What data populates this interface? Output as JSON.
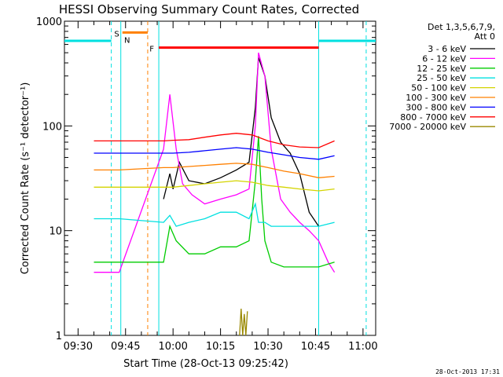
{
  "chart_data": {
    "type": "line",
    "title": "HESSI Observing Summary Count Rates, Corrected",
    "xlabel": "Start Time (28-Oct-13 09:25:42)",
    "ylabel": "Corrected Count Rate (s⁻¹ detector⁻¹)",
    "xlim": [
      "09:25:42",
      "11:04:00"
    ],
    "ylim": [
      1,
      1000
    ],
    "yscale": "log",
    "xticks": [
      "09:30",
      "09:45",
      "10:00",
      "10:15",
      "10:30",
      "10:45",
      "11:00"
    ],
    "yticks": [
      {
        "value": 1,
        "label": "1"
      },
      {
        "value": 10,
        "label": "10"
      },
      {
        "value": 100,
        "label": "100"
      },
      {
        "value": 1000,
        "label": "1000"
      }
    ],
    "legend_header": [
      "Det 1,3,5,6,7,9,",
      "Att 0"
    ],
    "legend_position": "right",
    "flags": [
      {
        "label": "S",
        "color": "#ff8800"
      },
      {
        "label": "N",
        "color": "#00d8d8"
      },
      {
        "label": "F",
        "color": "#ff0000"
      }
    ],
    "event_bars": [
      {
        "name": "night",
        "color": "#00e0e0",
        "start": "09:25:42",
        "end": "09:40:30",
        "level": 650
      },
      {
        "name": "night",
        "color": "#00e0e0",
        "start": "10:46:00",
        "end": "11:04:00",
        "level": 650
      },
      {
        "name": "saa",
        "color": "#ff8000",
        "start": "09:44:00",
        "end": "09:52:00",
        "level": 780
      },
      {
        "name": "flare",
        "color": "#ff0000",
        "start": "09:55:30",
        "end": "10:46:00",
        "level": 560
      }
    ],
    "boundaries": [
      {
        "time": "09:40:30",
        "color": "#00e0e0",
        "dashed": true
      },
      {
        "time": "09:43:30",
        "color": "#00e0e0",
        "dashed": false
      },
      {
        "time": "09:52:00",
        "color": "#ff8000",
        "dashed": true
      },
      {
        "time": "09:55:30",
        "color": "#00e0e0",
        "dashed": false
      },
      {
        "time": "10:46:00",
        "color": "#00e0e0",
        "dashed": false
      },
      {
        "time": "11:01:00",
        "color": "#00e0e0",
        "dashed": true
      }
    ],
    "series": [
      {
        "name": "3 - 6 keV",
        "color": "#000000",
        "x": [
          "09:57",
          "09:59",
          "10:00",
          "10:02",
          "10:05",
          "10:10",
          "10:15",
          "10:20",
          "10:24",
          "10:26",
          "10:27",
          "10:29",
          "10:31",
          "10:34",
          "10:37",
          "10:40",
          "10:43",
          "10:46"
        ],
        "y": [
          20,
          35,
          25,
          45,
          30,
          28,
          32,
          38,
          45,
          150,
          450,
          300,
          120,
          70,
          55,
          35,
          15,
          11
        ]
      },
      {
        "name": "6 - 12 keV",
        "color": "#ff00ff",
        "x": [
          "09:35",
          "09:40",
          "09:43",
          "09:57",
          "09:59",
          "10:01",
          "10:03",
          "10:06",
          "10:10",
          "10:15",
          "10:20",
          "10:24",
          "10:26",
          "10:27",
          "10:29",
          "10:31",
          "10:34",
          "10:37",
          "10:40",
          "10:43",
          "10:46",
          "10:49",
          "10:51"
        ],
        "y": [
          4,
          4,
          4,
          60,
          200,
          60,
          28,
          22,
          18,
          20,
          22,
          25,
          100,
          500,
          300,
          60,
          20,
          15,
          12,
          10,
          8,
          5,
          4
        ]
      },
      {
        "name": "12 - 25 keV",
        "color": "#00cc00",
        "x": [
          "09:35",
          "09:40",
          "09:43",
          "09:57",
          "09:59",
          "10:01",
          "10:05",
          "10:10",
          "10:15",
          "10:20",
          "10:24",
          "10:26",
          "10:27",
          "10:28",
          "10:29",
          "10:31",
          "10:35",
          "10:40",
          "10:46",
          "10:51"
        ],
        "y": [
          5,
          5,
          5,
          5,
          11,
          8,
          6,
          6,
          7,
          7,
          8,
          30,
          80,
          20,
          8,
          5,
          4.5,
          4.5,
          4.5,
          5
        ]
      },
      {
        "name": "25 - 50 keV",
        "color": "#00e0e0",
        "x": [
          "09:35",
          "09:40",
          "09:43",
          "09:57",
          "09:59",
          "10:01",
          "10:05",
          "10:10",
          "10:15",
          "10:20",
          "10:24",
          "10:26",
          "10:27",
          "10:29",
          "10:31",
          "10:35",
          "10:40",
          "10:46",
          "10:51"
        ],
        "y": [
          13,
          13,
          13,
          12,
          14,
          11,
          12,
          13,
          15,
          15,
          13,
          18,
          12,
          12,
          11,
          11,
          11,
          11,
          12
        ]
      },
      {
        "name": "50 - 100 keV",
        "color": "#d4d400",
        "x": [
          "09:35",
          "09:40",
          "09:43",
          "09:57",
          "10:00",
          "10:05",
          "10:10",
          "10:15",
          "10:20",
          "10:25",
          "10:30",
          "10:35",
          "10:40",
          "10:46",
          "10:51"
        ],
        "y": [
          26,
          26,
          26,
          26,
          26,
          27,
          28,
          29,
          30,
          29,
          27,
          26,
          25,
          24,
          25
        ]
      },
      {
        "name": "100 - 300 keV",
        "color": "#ff8000",
        "x": [
          "09:35",
          "09:40",
          "09:43",
          "09:57",
          "10:00",
          "10:05",
          "10:10",
          "10:15",
          "10:20",
          "10:25",
          "10:30",
          "10:35",
          "10:40",
          "10:46",
          "10:51"
        ],
        "y": [
          38,
          38,
          38,
          40,
          40,
          41,
          42,
          43,
          44,
          43,
          40,
          37,
          35,
          32,
          33
        ]
      },
      {
        "name": "300 - 800 keV",
        "color": "#0000ff",
        "x": [
          "09:35",
          "09:40",
          "09:43",
          "09:57",
          "10:00",
          "10:05",
          "10:10",
          "10:15",
          "10:20",
          "10:25",
          "10:30",
          "10:35",
          "10:40",
          "10:46",
          "10:51"
        ],
        "y": [
          55,
          55,
          55,
          55,
          55,
          56,
          58,
          60,
          62,
          60,
          56,
          53,
          50,
          48,
          52
        ]
      },
      {
        "name": "800 - 7000 keV",
        "color": "#ff0000",
        "x": [
          "09:35",
          "09:40",
          "09:43",
          "09:57",
          "10:00",
          "10:05",
          "10:10",
          "10:15",
          "10:20",
          "10:25",
          "10:30",
          "10:35",
          "10:40",
          "10:46",
          "10:51"
        ],
        "y": [
          72,
          72,
          72,
          72,
          73,
          74,
          78,
          82,
          85,
          82,
          72,
          66,
          63,
          62,
          72
        ]
      },
      {
        "name": "7000 - 20000 keV",
        "color": "#998800",
        "x": [
          "10:21",
          "10:21:30",
          "10:22",
          "10:22:30",
          "10:23",
          "10:23:30"
        ],
        "y": [
          1,
          1.8,
          1,
          1.6,
          1,
          1.7
        ]
      }
    ],
    "timestamp": "28-Oct-2013 17:31"
  }
}
